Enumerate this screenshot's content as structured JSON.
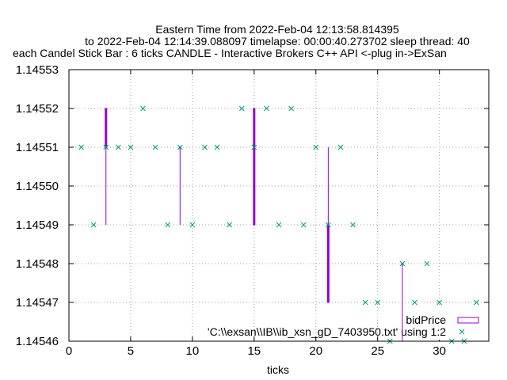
{
  "chart_data": {
    "type": "candlestick",
    "title_lines": [
      "Eastern Time from 2022-Feb-04 12:13:58.814395",
      "to 2022-Feb-04 12:14:39.088097 timelapse: 00:00:40.273702  sleep thread: 40",
      "each Candel Stick Bar : 6 ticks CANDLE - Interactive Brokers C++ API <-plug in->ExSan"
    ],
    "xlabel": "ticks",
    "ylabel": "",
    "xlim": [
      0,
      34
    ],
    "ylim": [
      1.14546,
      1.14553
    ],
    "x_ticks": [
      0,
      5,
      10,
      15,
      20,
      25,
      30
    ],
    "y_ticks": [
      1.14546,
      1.14547,
      1.14548,
      1.14549,
      1.1455,
      1.14551,
      1.14552,
      1.14553
    ],
    "y_tick_labels": [
      "1.14546",
      "1.14547",
      "1.14548",
      "1.14549",
      "1.14550",
      "1.14551",
      "1.14552",
      "1.14553"
    ],
    "grid": true,
    "legend_position": "bottom-right",
    "series": [
      {
        "name": "bidPrice",
        "kind": "candlestick",
        "color": "#9400d3",
        "candles": [
          {
            "x": 3,
            "open": 1.14552,
            "high": 1.14552,
            "low": 1.14549,
            "close": 1.14551
          },
          {
            "x": 9,
            "open": 1.14551,
            "high": 1.14551,
            "low": 1.14549,
            "close": 1.14551
          },
          {
            "x": 15,
            "open": 1.14552,
            "high": 1.14552,
            "low": 1.14549,
            "close": 1.14549
          },
          {
            "x": 21,
            "open": 1.14549,
            "high": 1.14551,
            "low": 1.14547,
            "close": 1.14547
          },
          {
            "x": 27,
            "open": 1.14548,
            "high": 1.14548,
            "low": 1.14546,
            "close": 1.14548
          }
        ]
      },
      {
        "name": "'C:\\\\exsan\\\\IB\\\\ib_xsn_gD_7403950.txt' using 1:2",
        "kind": "points",
        "color": "#009e73",
        "x": [
          1,
          2,
          3,
          4,
          5,
          6,
          7,
          8,
          9,
          10,
          11,
          12,
          13,
          14,
          15,
          16,
          17,
          18,
          19,
          20,
          21,
          22,
          23,
          24,
          25,
          26,
          27,
          28,
          29,
          30,
          31,
          32,
          33
        ],
        "y": [
          1.14551,
          1.14549,
          1.14551,
          1.14551,
          1.14551,
          1.14552,
          1.14551,
          1.14549,
          1.14551,
          1.14549,
          1.14551,
          1.14551,
          1.14549,
          1.14552,
          1.14551,
          1.14552,
          1.14549,
          1.14552,
          1.14549,
          1.14551,
          1.14549,
          1.14551,
          1.14549,
          1.14547,
          1.14547,
          1.14546,
          1.14548,
          1.14547,
          1.14548,
          1.14547,
          1.14546,
          1.14546,
          1.14547
        ]
      }
    ]
  }
}
